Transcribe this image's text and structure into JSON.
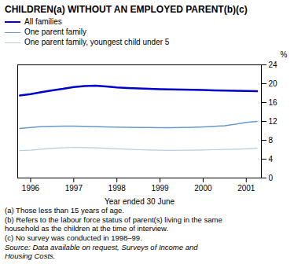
{
  "chart_data": {
    "type": "line",
    "title": "CHILDREN(a) WITHOUT AN EMPLOYED PARENT(b)(c)",
    "xlabel": "Year ended 30 June",
    "ylabel": "%",
    "x": [
      1995.75,
      1996.0,
      1996.25,
      1996.5,
      1996.75,
      1997.0,
      1997.25,
      1997.5,
      1997.75,
      1998.0,
      1998.25,
      1998.5,
      1998.75,
      1999.0,
      1999.25,
      1999.5,
      1999.75,
      2000.0,
      2000.25,
      2000.5,
      2000.75,
      2001.0,
      2001.25
    ],
    "series": [
      {
        "name": "All families",
        "color": "#0000cc",
        "values": [
          17.5,
          17.8,
          18.2,
          18.6,
          18.9,
          19.3,
          19.5,
          19.6,
          19.4,
          19.2,
          19.1,
          19.0,
          18.9,
          18.85,
          18.8,
          18.75,
          18.7,
          18.65,
          18.6,
          18.55,
          18.5,
          18.45,
          18.4
        ]
      },
      {
        "name": "One parent family",
        "color": "#6699cc",
        "values": [
          10.5,
          10.7,
          10.9,
          10.95,
          11.0,
          11.0,
          10.95,
          10.9,
          10.85,
          10.8,
          10.75,
          10.7,
          10.7,
          10.65,
          10.65,
          10.7,
          10.75,
          10.85,
          10.95,
          11.1,
          11.4,
          11.8,
          12.0
        ]
      },
      {
        "name": "One parent family, youngest child under 5",
        "color": "#b8ccdf",
        "values": [
          5.8,
          5.9,
          6.1,
          6.3,
          6.4,
          6.5,
          6.45,
          6.4,
          6.3,
          6.2,
          6.1,
          6.0,
          5.95,
          5.9,
          5.85,
          5.9,
          5.9,
          5.95,
          6.0,
          6.05,
          6.1,
          6.2,
          6.3
        ]
      }
    ],
    "xlim": [
      1995.7,
      2001.35
    ],
    "xticks": [
      1996,
      1997,
      1998,
      1999,
      2000,
      2001
    ],
    "ylim": [
      0,
      24
    ],
    "yticks": [
      0,
      4,
      8,
      12,
      16,
      20,
      24
    ],
    "grid": false,
    "legend": "upper left",
    "annotations": [
      "(a) Those less than 15 years of age.",
      "(b) Refers to the labour force status of parent(s) living in the same\nhousehold as the children at the time of interview.",
      "(c) No survey was conducted in 1998–99."
    ],
    "source": "Source: Data available on request, Surveys of Income and\nHousing Costs."
  }
}
